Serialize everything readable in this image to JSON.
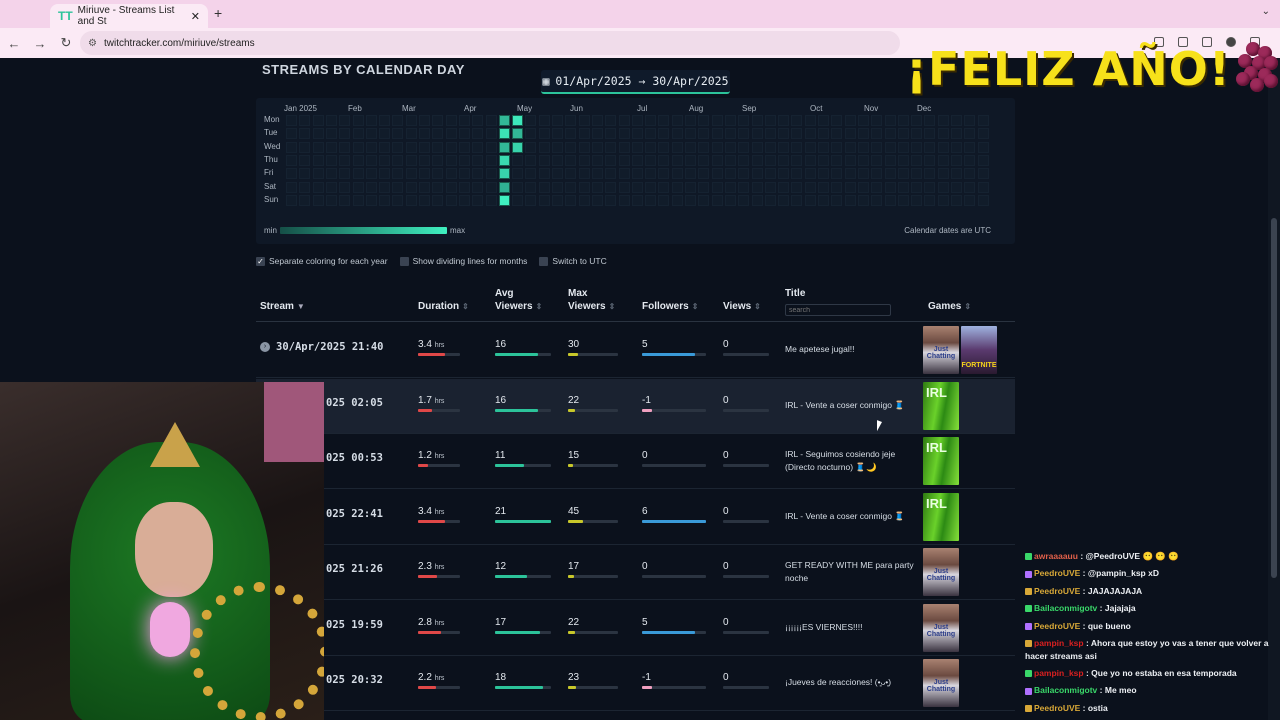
{
  "browser": {
    "tab_title": "Miriuve - Streams List and St",
    "url": "twitchtracker.com/miriuve/streams"
  },
  "overlay": {
    "banner": "¡FELIZ AÑO!"
  },
  "section": {
    "title": "STREAMS BY CALENDAR DAY",
    "date_range": "01/Apr/2025 → 30/Apr/2025"
  },
  "calendar": {
    "months": [
      "Jan 2025",
      "Feb",
      "Mar",
      "Apr",
      "May",
      "Jun",
      "Jul",
      "Aug",
      "Sep",
      "Oct",
      "Nov",
      "Dec"
    ],
    "days": [
      "Mon",
      "Tue",
      "Wed",
      "Thu",
      "Fri",
      "Sat",
      "Sun"
    ],
    "legend_min": "min",
    "legend_max": "max",
    "note": "Calendar dates are UTC",
    "active_cells": [
      {
        "week": 16,
        "day": 0,
        "level": 0.6
      },
      {
        "week": 16,
        "day": 1,
        "level": 0.9
      },
      {
        "week": 16,
        "day": 2,
        "level": 0.6
      },
      {
        "week": 16,
        "day": 3,
        "level": 0.85
      },
      {
        "week": 16,
        "day": 4,
        "level": 0.8
      },
      {
        "week": 16,
        "day": 5,
        "level": 0.55
      },
      {
        "week": 16,
        "day": 6,
        "level": 1.0
      },
      {
        "week": 17,
        "day": 0,
        "level": 0.95
      },
      {
        "week": 17,
        "day": 1,
        "level": 0.6
      },
      {
        "week": 17,
        "day": 2,
        "level": 0.8
      }
    ],
    "accent": "#3ff0c0"
  },
  "options": [
    {
      "label": "Separate coloring for each year",
      "checked": true
    },
    {
      "label": "Show dividing lines for months",
      "checked": false
    },
    {
      "label": "Switch to UTC",
      "checked": false
    }
  ],
  "table": {
    "headers": {
      "stream": "Stream",
      "duration": "Duration",
      "avg1": "Avg",
      "avg2": "Viewers",
      "max1": "Max",
      "max2": "Viewers",
      "followers": "Followers",
      "views": "Views",
      "title": "Title",
      "games": "Games"
    },
    "search_placeholder": "search",
    "hrs": "hrs",
    "rows": [
      {
        "date": "30/Apr/2025 21:40",
        "duration": "3.4",
        "avg": "16",
        "max": "30",
        "followers": "5",
        "views": "0",
        "title": "Me apetese jugal!!",
        "games": [
          "jc",
          "fn"
        ]
      },
      {
        "date": "025 02:05",
        "duration": "1.7",
        "avg": "16",
        "max": "22",
        "followers": "-1",
        "views": "0",
        "title": "IRL - Vente a coser conmigo 🧵",
        "games": [
          "irl"
        ]
      },
      {
        "date": "025 00:53",
        "duration": "1.2",
        "avg": "11",
        "max": "15",
        "followers": "0",
        "views": "0",
        "title": "IRL - Seguimos cosiendo jeje (Directo nocturno) 🧵🌙",
        "games": [
          "irl"
        ]
      },
      {
        "date": "025 22:41",
        "duration": "3.4",
        "avg": "21",
        "max": "45",
        "followers": "6",
        "views": "0",
        "title": "IRL - Vente a coser conmigo 🧵",
        "games": [
          "irl"
        ]
      },
      {
        "date": "025 21:26",
        "duration": "2.3",
        "avg": "12",
        "max": "17",
        "followers": "0",
        "views": "0",
        "title": "GET READY WITH ME para party noche",
        "games": [
          "jc"
        ]
      },
      {
        "date": "025 19:59",
        "duration": "2.8",
        "avg": "17",
        "max": "22",
        "followers": "5",
        "views": "0",
        "title": "¡¡¡¡¡¡ES VIERNES!!!!",
        "games": [
          "jc"
        ]
      },
      {
        "date": "025 20:32",
        "duration": "2.2",
        "avg": "18",
        "max": "23",
        "followers": "-1",
        "views": "0",
        "title": "¡Jueves de reacciones! (•͈ᴗ•͈)",
        "games": [
          "jc"
        ]
      }
    ],
    "game_labels": {
      "irl": "IRL",
      "jc": "Just Chatting",
      "fn": "FORTNITE"
    },
    "colors": {
      "duration": "#e04848",
      "avg": "#2cc39a",
      "max": "#c8c82a",
      "followers": "#3a9ad8",
      "neg": "#f0a0c0"
    }
  },
  "chat": [
    {
      "user": "awraaaauu",
      "color": "#e0604a",
      "text": "@PeedroUVE 😶 😶 😶"
    },
    {
      "user": "PeedroUVE",
      "color": "#d8a838",
      "text": "@pampin_ksp xD"
    },
    {
      "user": "PeedroUVE",
      "color": "#d8a838",
      "text": "JAJAJAJAJA"
    },
    {
      "user": "Bailaconmigotv",
      "color": "#3ad86a",
      "text": "Jajajaja"
    },
    {
      "user": "PeedroUVE",
      "color": "#d8a838",
      "text": "que bueno"
    },
    {
      "user": "pampin_ksp",
      "color": "#d82020",
      "text": "Ahora que estoy yo vas a tener que volver a hacer streams asi"
    },
    {
      "user": "pampin_ksp",
      "color": "#d82020",
      "text": "Que yo no estaba en esa temporada"
    },
    {
      "user": "Bailaconmigotv",
      "color": "#3ad86a",
      "text": "Me meo"
    },
    {
      "user": "PeedroUVE",
      "color": "#d8a838",
      "text": "ostia"
    }
  ]
}
